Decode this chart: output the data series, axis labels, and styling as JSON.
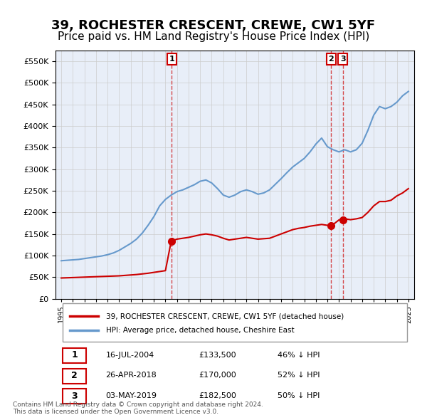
{
  "title": "39, ROCHESTER CRESCENT, CREWE, CW1 5YF",
  "subtitle": "Price paid vs. HM Land Registry's House Price Index (HPI)",
  "title_fontsize": 13,
  "subtitle_fontsize": 11,
  "background_color": "#f0f4ff",
  "plot_bg_color": "#e8eef8",
  "ylim": [
    0,
    575000
  ],
  "yticks": [
    0,
    50000,
    100000,
    150000,
    200000,
    250000,
    300000,
    350000,
    400000,
    450000,
    500000,
    550000
  ],
  "ylabel_format": "£{0}K",
  "legend_red": "39, ROCHESTER CRESCENT, CREWE, CW1 5YF (detached house)",
  "legend_blue": "HPI: Average price, detached house, Cheshire East",
  "footer": "Contains HM Land Registry data © Crown copyright and database right 2024.\nThis data is licensed under the Open Government Licence v3.0.",
  "transactions": [
    {
      "num": 1,
      "date": "16-JUL-2004",
      "price": "£133,500",
      "hpi": "46% ↓ HPI",
      "year": 2004.54
    },
    {
      "num": 2,
      "date": "26-APR-2018",
      "price": "£170,000",
      "hpi": "52% ↓ HPI",
      "year": 2018.32
    },
    {
      "num": 3,
      "date": "03-MAY-2019",
      "price": "£182,500",
      "hpi": "50% ↓ HPI",
      "year": 2019.34
    }
  ],
  "transaction_prices": [
    133500,
    170000,
    182500
  ],
  "hpi_x": [
    1995,
    1995.5,
    1996,
    1996.5,
    1997,
    1997.5,
    1998,
    1998.5,
    1999,
    1999.5,
    2000,
    2000.5,
    2001,
    2001.5,
    2002,
    2002.5,
    2003,
    2003.5,
    2004,
    2004.5,
    2005,
    2005.5,
    2006,
    2006.5,
    2007,
    2007.5,
    2008,
    2008.5,
    2009,
    2009.5,
    2010,
    2010.5,
    2011,
    2011.5,
    2012,
    2012.5,
    2013,
    2013.5,
    2014,
    2014.5,
    2015,
    2015.5,
    2016,
    2016.5,
    2017,
    2017.5,
    2018,
    2018.5,
    2019,
    2019.5,
    2020,
    2020.5,
    2021,
    2021.5,
    2022,
    2022.5,
    2023,
    2023.5,
    2024,
    2024.5,
    2025
  ],
  "hpi_y": [
    88000,
    89000,
    90000,
    91000,
    93000,
    95000,
    97000,
    99000,
    102000,
    106000,
    112000,
    120000,
    128000,
    138000,
    152000,
    170000,
    190000,
    215000,
    230000,
    240000,
    248000,
    252000,
    258000,
    264000,
    272000,
    275000,
    268000,
    255000,
    240000,
    235000,
    240000,
    248000,
    252000,
    248000,
    242000,
    245000,
    252000,
    265000,
    278000,
    292000,
    305000,
    315000,
    325000,
    340000,
    358000,
    372000,
    352000,
    345000,
    340000,
    345000,
    340000,
    345000,
    360000,
    390000,
    425000,
    445000,
    440000,
    445000,
    455000,
    470000,
    480000
  ],
  "red_x": [
    1995,
    1995.5,
    1996,
    1996.5,
    1997,
    1997.5,
    1998,
    1998.5,
    1999,
    1999.5,
    2000,
    2000.5,
    2001,
    2001.5,
    2002,
    2002.5,
    2003,
    2003.5,
    2004,
    2004.5,
    2005,
    2005.5,
    2006,
    2006.5,
    2007,
    2007.5,
    2008,
    2008.5,
    2009,
    2009.5,
    2010,
    2010.5,
    2011,
    2011.5,
    2012,
    2012.5,
    2013,
    2013.5,
    2014,
    2014.5,
    2015,
    2015.5,
    2016,
    2016.5,
    2017,
    2017.5,
    2018,
    2018.5,
    2019,
    2019.5,
    2020,
    2020.5,
    2021,
    2021.5,
    2022,
    2022.5,
    2023,
    2023.5,
    2024,
    2024.5,
    2025
  ],
  "red_y": [
    48000,
    48500,
    49000,
    49500,
    50000,
    50500,
    51000,
    51500,
    52000,
    52500,
    53000,
    54000,
    55000,
    56000,
    57500,
    59000,
    61000,
    63000,
    65000,
    133500,
    138000,
    140000,
    142000,
    145000,
    148000,
    150000,
    148000,
    145000,
    140000,
    136000,
    138000,
    140000,
    142000,
    140000,
    138000,
    139000,
    140000,
    145000,
    150000,
    155000,
    160000,
    163000,
    165000,
    168000,
    170000,
    172000,
    170000,
    172000,
    182500,
    185000,
    183000,
    185000,
    188000,
    200000,
    215000,
    225000,
    225000,
    228000,
    238000,
    245000,
    255000
  ],
  "line_color_red": "#cc0000",
  "line_color_blue": "#6699cc",
  "marker_color_red": "#cc0000",
  "grid_color": "#cccccc",
  "box_color": "#cc0000"
}
